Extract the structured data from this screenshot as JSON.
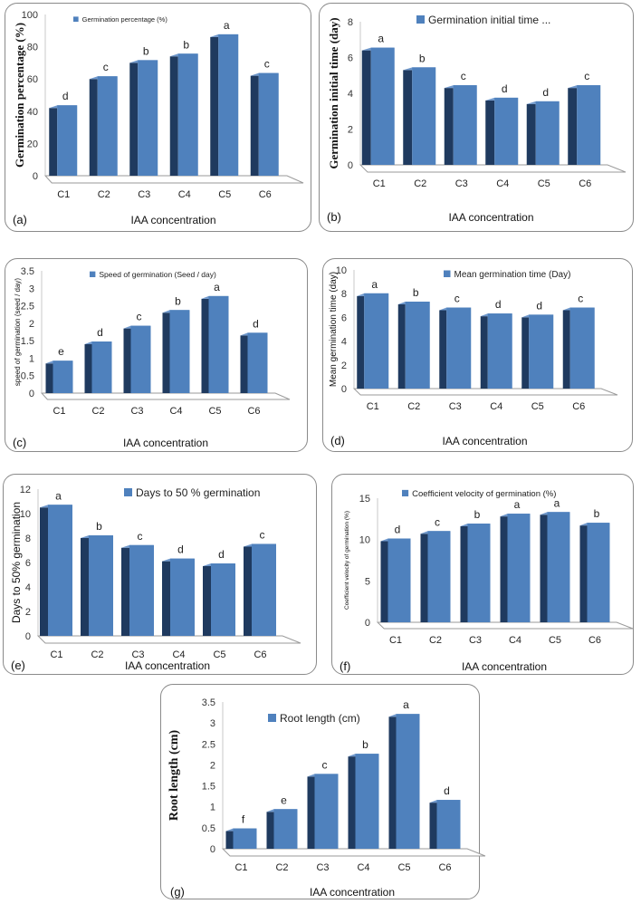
{
  "colors": {
    "bar_front": "#4f81bd",
    "bar_side": "#1f3a5f",
    "bar_top": "#6f98cc",
    "floor": "#ffffff",
    "floor_edge": "#9a9a9a"
  },
  "chart_data": [
    {
      "id": "a",
      "panel_label": "(a)",
      "type": "bar",
      "title": "",
      "legend": "Germination percentage (%)",
      "xlabel": "IAA concentration",
      "ylabel": "Germination percentage (%)",
      "categories": [
        "C1",
        "C2",
        "C3",
        "C4",
        "C5",
        "C6"
      ],
      "values": [
        42,
        60,
        70,
        74,
        86,
        62
      ],
      "letters": [
        "d",
        "c",
        "b",
        "b",
        "a",
        "c"
      ],
      "ylim": [
        0,
        100
      ],
      "yticks": [
        "0",
        "20",
        "40",
        "60",
        "80",
        "100"
      ]
    },
    {
      "id": "b",
      "panel_label": "(b)",
      "type": "bar",
      "title": "",
      "legend": "Germination initial time ...",
      "xlabel": "IAA concentration",
      "ylabel": "Germination initial time (day)",
      "categories": [
        "C1",
        "C2",
        "C3",
        "C4",
        "C5",
        "C6"
      ],
      "values": [
        6.4,
        5.3,
        4.3,
        3.6,
        3.4,
        4.3
      ],
      "letters": [
        "a",
        "b",
        "c",
        "d",
        "d",
        "c"
      ],
      "ylim": [
        0,
        8
      ],
      "yticks": [
        "0",
        "2",
        "4",
        "6",
        "8"
      ]
    },
    {
      "id": "c",
      "panel_label": "(c)",
      "type": "bar",
      "title": "",
      "legend": "Speed of germination (Seed / day)",
      "xlabel": "IAA concentration",
      "ylabel": "speed of germination (seed / day)",
      "categories": [
        "C1",
        "C2",
        "C3",
        "C4",
        "C5",
        "C6"
      ],
      "values": [
        0.85,
        1.4,
        1.85,
        2.3,
        2.7,
        1.65
      ],
      "letters": [
        "e",
        "d",
        "c",
        "b",
        "a",
        "d"
      ],
      "ylim": [
        0,
        3.5
      ],
      "yticks": [
        "0",
        "0.5",
        "1",
        "1.5",
        "2",
        "2.5",
        "3",
        "3.5"
      ]
    },
    {
      "id": "d",
      "panel_label": "(d)",
      "type": "bar",
      "title": "",
      "legend": "Mean germination time (Day)",
      "xlabel": "IAA concentration",
      "ylabel": "Mean germination time (day)",
      "categories": [
        "C1",
        "C2",
        "C3",
        "C4",
        "C5",
        "C6"
      ],
      "values": [
        7.8,
        7.1,
        6.6,
        6.1,
        6.0,
        6.6
      ],
      "letters": [
        "a",
        "b",
        "c",
        "d",
        "d",
        "c"
      ],
      "ylim": [
        0,
        10
      ],
      "yticks": [
        "0",
        "2",
        "4",
        "6",
        "8",
        "10"
      ]
    },
    {
      "id": "e",
      "panel_label": "(e)",
      "type": "bar",
      "title": "",
      "legend": "Days to 50 % germination",
      "xlabel": "IAA concentration",
      "ylabel": "Days to 50% germination",
      "categories": [
        "C1",
        "C2",
        "C3",
        "C4",
        "C5",
        "C6"
      ],
      "values": [
        10.5,
        8.0,
        7.2,
        6.1,
        5.7,
        7.3
      ],
      "letters": [
        "a",
        "b",
        "c",
        "d",
        "d",
        "c"
      ],
      "ylim": [
        0,
        12
      ],
      "yticks": [
        "0",
        "2",
        "4",
        "6",
        "8",
        "10",
        "12"
      ]
    },
    {
      "id": "f",
      "panel_label": "(f)",
      "type": "bar",
      "title": "",
      "legend": "Coefficient velocity of germination (%)",
      "xlabel": "IAA concentration",
      "ylabel": "Coefficient velocity of germination (%)",
      "categories": [
        "C1",
        "C2",
        "C3",
        "C4",
        "C5",
        "C6"
      ],
      "values": [
        9.8,
        10.7,
        11.6,
        12.8,
        13.0,
        11.7
      ],
      "letters": [
        "d",
        "c",
        "b",
        "a",
        "a",
        "b"
      ],
      "ylim": [
        0,
        15
      ],
      "yticks": [
        "0",
        "5",
        "10",
        "15"
      ]
    },
    {
      "id": "g",
      "panel_label": "(g)",
      "type": "bar",
      "title": "",
      "legend": "Root length (cm)",
      "xlabel": "IAA concentration",
      "ylabel": "Root length (cm)",
      "categories": [
        "C1",
        "C2",
        "C3",
        "C4",
        "C5",
        "C6"
      ],
      "values": [
        0.42,
        0.88,
        1.72,
        2.2,
        3.15,
        1.1
      ],
      "letters": [
        "f",
        "e",
        "c",
        "b",
        "a",
        "d"
      ],
      "ylim": [
        0,
        3.5
      ],
      "yticks": [
        "0",
        "0.5",
        "1",
        "1.5",
        "2",
        "2.5",
        "3",
        "3.5"
      ]
    }
  ]
}
